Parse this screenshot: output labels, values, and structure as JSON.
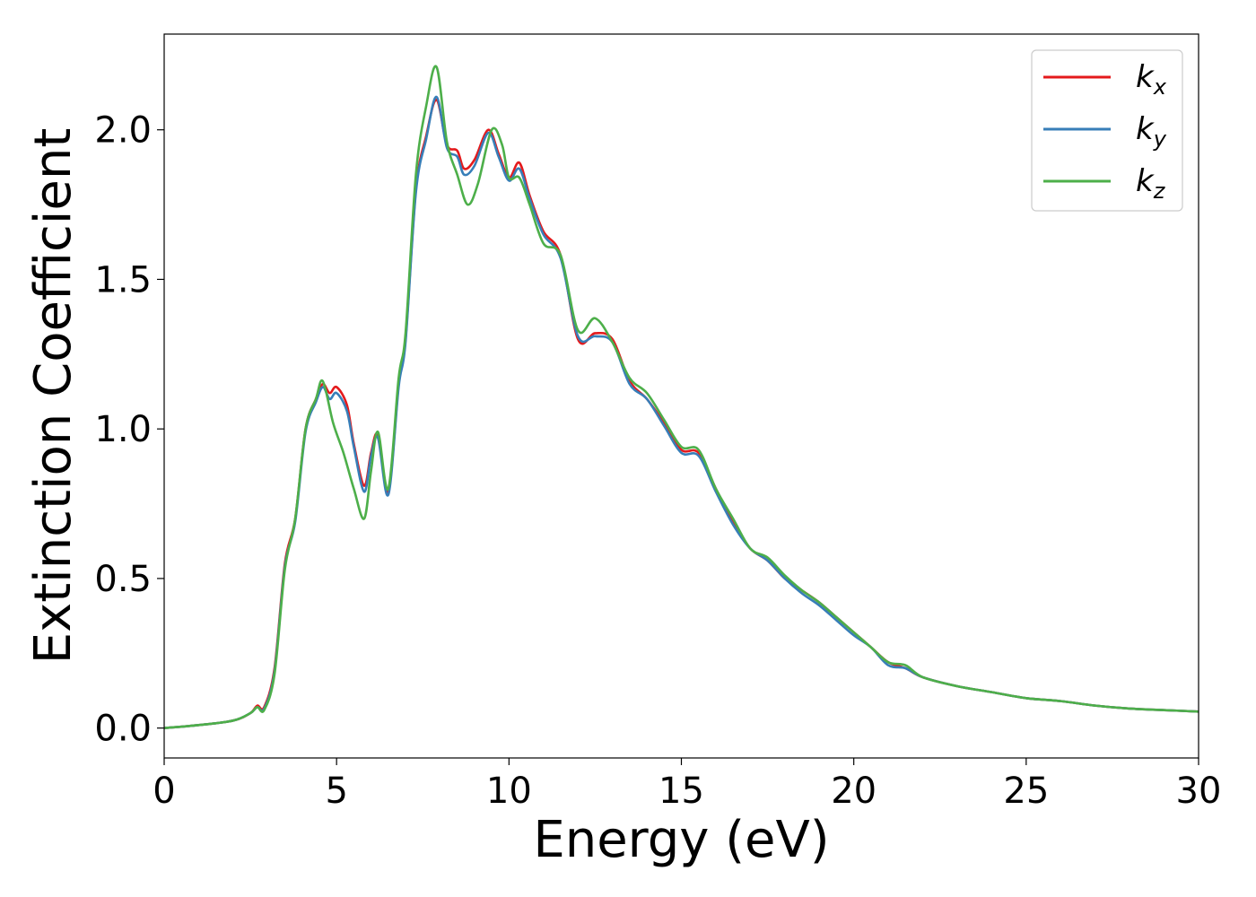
{
  "chart_data": {
    "type": "line",
    "xlabel": "Energy (eV)",
    "ylabel": "Extinction Coefficient",
    "xlim": [
      0,
      30
    ],
    "ylim": [
      -0.1,
      2.32
    ],
    "xticks": [
      0,
      5,
      10,
      15,
      20,
      25,
      30
    ],
    "xtick_labels": [
      "0",
      "5",
      "10",
      "15",
      "20",
      "25",
      "30"
    ],
    "yticks": [
      0.0,
      0.5,
      1.0,
      1.5,
      2.0
    ],
    "ytick_labels": [
      "0.0",
      "0.5",
      "1.0",
      "1.5",
      "2.0"
    ],
    "grid": false,
    "legend_position": "top-right",
    "series": [
      {
        "name": "k",
        "subscript": "x",
        "color": "#e41a1c",
        "x": [
          0,
          1,
          2,
          2.5,
          2.7,
          2.9,
          3.2,
          3.5,
          3.8,
          4.1,
          4.4,
          4.6,
          4.8,
          5.0,
          5.3,
          5.5,
          5.8,
          6.0,
          6.2,
          6.5,
          6.8,
          7.0,
          7.3,
          7.6,
          7.9,
          8.2,
          8.5,
          8.7,
          9.0,
          9.4,
          9.7,
          10.0,
          10.3,
          10.6,
          11.0,
          11.5,
          12.0,
          12.5,
          13.0,
          13.5,
          14.0,
          14.5,
          15.0,
          15.5,
          16.0,
          16.5,
          17.0,
          17.5,
          18.0,
          18.5,
          19.0,
          19.5,
          20.0,
          20.5,
          21.0,
          21.5,
          22.0,
          23.0,
          24.0,
          25.0,
          26.0,
          27.0,
          28.0,
          29.0,
          30.0
        ],
        "y": [
          0.0,
          0.01,
          0.025,
          0.05,
          0.075,
          0.07,
          0.2,
          0.55,
          0.7,
          1.0,
          1.1,
          1.15,
          1.12,
          1.14,
          1.08,
          0.95,
          0.81,
          0.92,
          0.98,
          0.79,
          1.15,
          1.3,
          1.8,
          1.98,
          2.1,
          1.95,
          1.93,
          1.87,
          1.9,
          2.0,
          1.92,
          1.84,
          1.89,
          1.78,
          1.66,
          1.58,
          1.3,
          1.32,
          1.3,
          1.16,
          1.1,
          1.02,
          0.93,
          0.92,
          0.8,
          0.69,
          0.6,
          0.56,
          0.5,
          0.46,
          0.42,
          0.37,
          0.32,
          0.27,
          0.22,
          0.2,
          0.17,
          0.14,
          0.12,
          0.1,
          0.09,
          0.075,
          0.065,
          0.06,
          0.055
        ]
      },
      {
        "name": "k",
        "subscript": "y",
        "color": "#377eb8",
        "x": [
          0,
          1,
          2,
          2.5,
          2.7,
          2.9,
          3.2,
          3.5,
          3.8,
          4.1,
          4.4,
          4.6,
          4.8,
          5.0,
          5.3,
          5.5,
          5.8,
          6.0,
          6.2,
          6.5,
          6.8,
          7.0,
          7.3,
          7.6,
          7.9,
          8.2,
          8.5,
          8.7,
          9.0,
          9.4,
          9.7,
          10.0,
          10.3,
          10.6,
          11.0,
          11.5,
          12.0,
          12.5,
          13.0,
          13.5,
          14.0,
          14.5,
          15.0,
          15.5,
          16.0,
          16.5,
          17.0,
          17.5,
          18.0,
          18.5,
          19.0,
          19.5,
          20.0,
          20.5,
          21.0,
          21.5,
          22.0,
          23.0,
          24.0,
          25.0,
          26.0,
          27.0,
          28.0,
          29.0,
          30.0
        ],
        "y": [
          0.0,
          0.01,
          0.025,
          0.05,
          0.07,
          0.065,
          0.19,
          0.54,
          0.69,
          0.99,
          1.09,
          1.14,
          1.1,
          1.12,
          1.06,
          0.94,
          0.79,
          0.91,
          0.97,
          0.78,
          1.14,
          1.29,
          1.79,
          1.97,
          2.11,
          1.94,
          1.91,
          1.85,
          1.88,
          1.99,
          1.91,
          1.83,
          1.87,
          1.77,
          1.65,
          1.57,
          1.31,
          1.31,
          1.29,
          1.15,
          1.1,
          1.01,
          0.92,
          0.91,
          0.79,
          0.68,
          0.6,
          0.56,
          0.5,
          0.45,
          0.41,
          0.36,
          0.31,
          0.27,
          0.21,
          0.2,
          0.17,
          0.14,
          0.12,
          0.1,
          0.09,
          0.075,
          0.065,
          0.06,
          0.055
        ]
      },
      {
        "name": "k",
        "subscript": "z",
        "color": "#4daf4a",
        "x": [
          0,
          1,
          2,
          2.5,
          2.7,
          2.9,
          3.2,
          3.5,
          3.8,
          4.1,
          4.4,
          4.6,
          4.9,
          5.2,
          5.5,
          5.8,
          6.0,
          6.2,
          6.5,
          6.8,
          7.0,
          7.3,
          7.6,
          7.9,
          8.2,
          8.5,
          8.8,
          9.1,
          9.5,
          9.8,
          10.0,
          10.3,
          10.6,
          11.0,
          11.5,
          12.0,
          12.5,
          13.0,
          13.5,
          14.0,
          14.5,
          15.0,
          15.5,
          16.0,
          16.5,
          17.0,
          17.5,
          18.0,
          18.5,
          19.0,
          19.5,
          20.0,
          20.5,
          21.0,
          21.5,
          22.0,
          23.0,
          24.0,
          25.0,
          26.0,
          27.0,
          28.0,
          29.0,
          30.0
        ],
        "y": [
          0.0,
          0.01,
          0.025,
          0.05,
          0.07,
          0.06,
          0.18,
          0.53,
          0.7,
          1.0,
          1.1,
          1.16,
          1.02,
          0.92,
          0.8,
          0.7,
          0.86,
          0.99,
          0.8,
          1.17,
          1.32,
          1.85,
          2.08,
          2.21,
          1.96,
          1.85,
          1.75,
          1.82,
          2.0,
          1.95,
          1.84,
          1.84,
          1.75,
          1.62,
          1.58,
          1.33,
          1.37,
          1.29,
          1.17,
          1.12,
          1.03,
          0.94,
          0.93,
          0.8,
          0.7,
          0.6,
          0.57,
          0.51,
          0.46,
          0.42,
          0.37,
          0.32,
          0.27,
          0.22,
          0.21,
          0.17,
          0.14,
          0.12,
          0.1,
          0.09,
          0.075,
          0.065,
          0.06,
          0.055
        ]
      }
    ]
  }
}
